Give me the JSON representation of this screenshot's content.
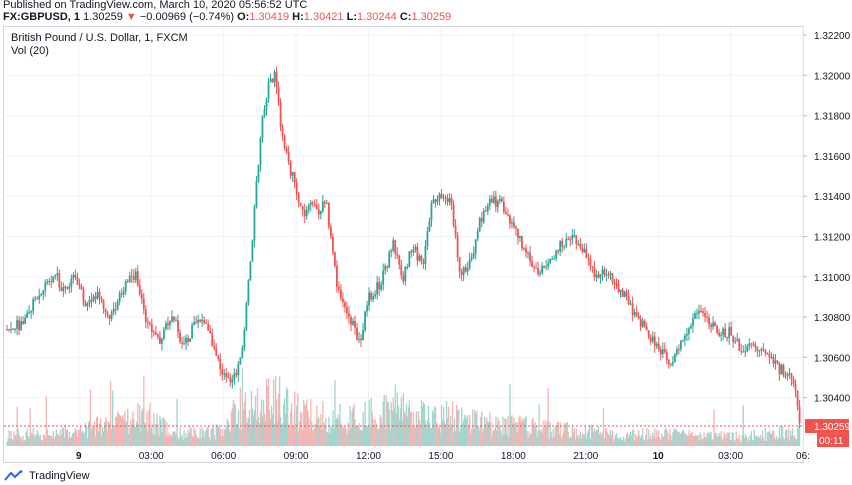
{
  "header": {
    "published": "Published on TradingView.com, March 10, 2020 05:56:52 UTC",
    "symbol": "FX:GBPUSD, 1",
    "last": "1.30259",
    "change": "−0.00969 (−0.74%)",
    "o_label": "O:",
    "o": "1.30419",
    "h_label": "H:",
    "h": "1.30421",
    "l_label": "L:",
    "l": "1.30244",
    "c_label": "C:",
    "c": "1.30259"
  },
  "legend": {
    "title": "British Pound / U.S. Dollar, 1, FXCM",
    "volume": "Vol (20)"
  },
  "footer": {
    "brand": "TradingView"
  },
  "colors": {
    "up": "#26a69a",
    "down": "#ef5350",
    "vol_up": "#9fd6d0",
    "vol_down": "#f4b5b4",
    "grid": "#f0f3fa",
    "axis": "#131722"
  },
  "chart_data": {
    "type": "candlestick",
    "title": "British Pound / U.S. Dollar, 1, FXCM",
    "ylim": [
      1.3016,
      1.3224
    ],
    "y_ticks": [
      "1.32200",
      "1.32000",
      "1.31800",
      "1.31600",
      "1.31400",
      "1.31200",
      "1.31000",
      "1.30800",
      "1.30600",
      "1.30400"
    ],
    "y_tick_values": [
      1.322,
      1.32,
      1.318,
      1.316,
      1.314,
      1.312,
      1.31,
      1.308,
      1.306,
      1.304
    ],
    "x_ticks": [
      "9",
      "03:00",
      "06:00",
      "09:00",
      "12:00",
      "15:00",
      "18:00",
      "21:00",
      "10",
      "03:00",
      "06:"
    ],
    "x_tick_hours": [
      0,
      3,
      6,
      9,
      12,
      15,
      18,
      21,
      24,
      27,
      30
    ],
    "x_range_hours": [
      -3.1,
      30.0
    ],
    "last_price_label": "1.30259",
    "last_price": 1.30259,
    "countdown": "00:11",
    "price_path": [
      [
        -3.0,
        1.3074
      ],
      [
        -2.5,
        1.3076
      ],
      [
        -2.0,
        1.3085
      ],
      [
        -1.5,
        1.3093
      ],
      [
        -1.0,
        1.3101
      ],
      [
        -0.6,
        1.3092
      ],
      [
        -0.2,
        1.3104
      ],
      [
        0.2,
        1.3086
      ],
      [
        0.7,
        1.3092
      ],
      [
        1.2,
        1.3078
      ],
      [
        1.7,
        1.3092
      ],
      [
        2.3,
        1.3102
      ],
      [
        2.8,
        1.3077
      ],
      [
        3.3,
        1.3068
      ],
      [
        3.8,
        1.3082
      ],
      [
        4.3,
        1.3066
      ],
      [
        4.9,
        1.3078
      ],
      [
        5.4,
        1.3072
      ],
      [
        5.9,
        1.3054
      ],
      [
        6.3,
        1.3048
      ],
      [
        6.7,
        1.306
      ],
      [
        7.0,
        1.3096
      ],
      [
        7.3,
        1.314
      ],
      [
        7.6,
        1.3182
      ],
      [
        7.85,
        1.3196
      ],
      [
        8.1,
        1.32
      ],
      [
        8.4,
        1.317
      ],
      [
        8.7,
        1.3155
      ],
      [
        9.0,
        1.3142
      ],
      [
        9.3,
        1.3128
      ],
      [
        9.6,
        1.3138
      ],
      [
        9.9,
        1.313
      ],
      [
        10.2,
        1.314
      ],
      [
        10.5,
        1.311
      ],
      [
        10.8,
        1.3088
      ],
      [
        11.2,
        1.308
      ],
      [
        11.6,
        1.3066
      ],
      [
        12.0,
        1.309
      ],
      [
        12.5,
        1.3098
      ],
      [
        13.0,
        1.3116
      ],
      [
        13.4,
        1.31
      ],
      [
        13.8,
        1.3115
      ],
      [
        14.2,
        1.3105
      ],
      [
        14.6,
        1.3138
      ],
      [
        15.0,
        1.3142
      ],
      [
        15.4,
        1.3136
      ],
      [
        15.8,
        1.31
      ],
      [
        16.2,
        1.3108
      ],
      [
        16.6,
        1.3128
      ],
      [
        17.0,
        1.3138
      ],
      [
        17.5,
        1.3136
      ],
      [
        18.0,
        1.3124
      ],
      [
        18.5,
        1.3112
      ],
      [
        19.0,
        1.3102
      ],
      [
        19.5,
        1.311
      ],
      [
        20.0,
        1.3116
      ],
      [
        20.5,
        1.312
      ],
      [
        21.0,
        1.311
      ],
      [
        21.4,
        1.31
      ],
      [
        21.8,
        1.3104
      ],
      [
        22.2,
        1.3096
      ],
      [
        22.6,
        1.309
      ],
      [
        23.0,
        1.308
      ],
      [
        23.5,
        1.3074
      ],
      [
        24.0,
        1.3064
      ],
      [
        24.5,
        1.3058
      ],
      [
        25.0,
        1.307
      ],
      [
        25.5,
        1.3082
      ],
      [
        26.0,
        1.308
      ],
      [
        26.5,
        1.3072
      ],
      [
        27.0,
        1.3072
      ],
      [
        27.5,
        1.3062
      ],
      [
        28.0,
        1.3066
      ],
      [
        28.5,
        1.3062
      ],
      [
        29.0,
        1.3054
      ],
      [
        29.4,
        1.3052
      ],
      [
        29.7,
        1.3042
      ],
      [
        29.85,
        1.30259
      ]
    ],
    "volume_ylim": [
      0,
      100
    ],
    "volume_profile": [
      [
        -3.0,
        10
      ],
      [
        0.0,
        14
      ],
      [
        2.5,
        30
      ],
      [
        4.0,
        12
      ],
      [
        6.0,
        14
      ],
      [
        6.5,
        30
      ],
      [
        7.8,
        50
      ],
      [
        9.0,
        35
      ],
      [
        11.0,
        26
      ],
      [
        13.0,
        34
      ],
      [
        15.0,
        30
      ],
      [
        17.0,
        22
      ],
      [
        19.0,
        18
      ],
      [
        21.0,
        14
      ],
      [
        22.5,
        10
      ],
      [
        24.0,
        12
      ],
      [
        27.0,
        9
      ],
      [
        29.85,
        14
      ]
    ]
  }
}
